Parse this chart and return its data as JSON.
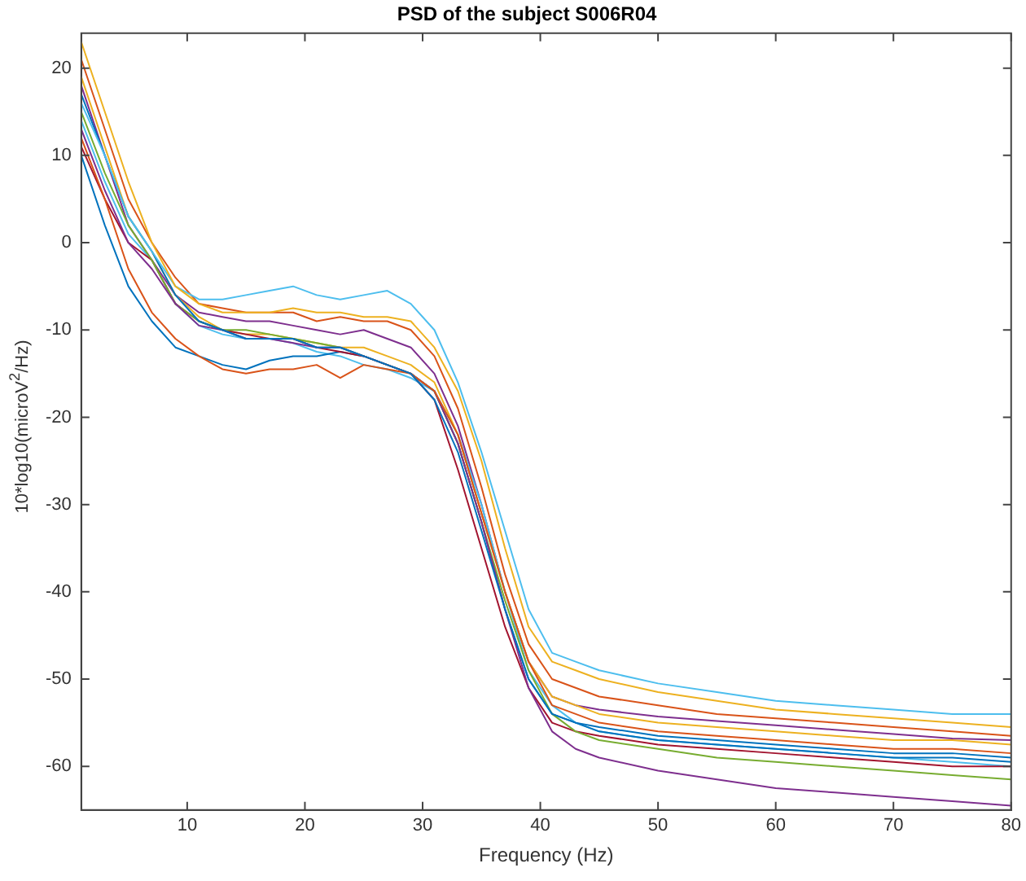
{
  "chart_data": {
    "type": "line",
    "title": "PSD of the subject S006R04",
    "xlabel": "Frequency (Hz)",
    "ylabel": "10*log10(microV$^{2}$/Hz)",
    "x": [
      1,
      3,
      5,
      7,
      9,
      11,
      13,
      15,
      17,
      19,
      21,
      23,
      25,
      27,
      29,
      31,
      33,
      35,
      37,
      39,
      41,
      43,
      45,
      50,
      55,
      60,
      65,
      70,
      75,
      80
    ],
    "xlim": [
      1,
      80
    ],
    "xticks": [
      10,
      20,
      30,
      40,
      50,
      60,
      70,
      80
    ],
    "ylim": [
      -65,
      24
    ],
    "yticks": [
      -60,
      -50,
      -40,
      -30,
      -20,
      -10,
      0,
      10,
      20
    ],
    "grid": false,
    "legend": false,
    "series": [
      {
        "color": "#edb120",
        "values": [
          23,
          15,
          7,
          0,
          -5,
          -7,
          -8,
          -8,
          -8,
          -7.5,
          -8,
          -8,
          -8.5,
          -8.5,
          -9,
          -12,
          -17,
          -25,
          -35,
          -44,
          -48,
          -49,
          -50,
          -51.5,
          -52.5,
          -53.5,
          -54,
          -54.5,
          -55,
          -55.5
        ]
      },
      {
        "color": "#4dbeee",
        "values": [
          16,
          10,
          3,
          -1,
          -5,
          -6.5,
          -6.5,
          -6,
          -5.5,
          -5,
          -6,
          -6.5,
          -6,
          -5.5,
          -7,
          -10,
          -16,
          -24,
          -33,
          -42,
          -47,
          -48,
          -49,
          -50.5,
          -51.5,
          -52.5,
          -53,
          -53.5,
          -54,
          -54
        ]
      },
      {
        "color": "#0072bd",
        "values": [
          17,
          10,
          3,
          -1,
          -6,
          -9,
          -10,
          -11,
          -11,
          -11,
          -12,
          -12,
          -13,
          -14,
          -15,
          -18,
          -24,
          -33,
          -42,
          -50,
          -54,
          -55,
          -55.5,
          -56.5,
          -57,
          -57.5,
          -58,
          -58.5,
          -58.5,
          -59
        ]
      },
      {
        "color": "#d95319",
        "values": [
          12,
          5,
          -3,
          -8,
          -11,
          -13,
          -14.5,
          -15,
          -14.5,
          -14.5,
          -14,
          -15.5,
          -14,
          -14.5,
          -15,
          -17,
          -22,
          -31,
          -40,
          -48,
          -53,
          -54,
          -55,
          -56,
          -56.5,
          -57,
          -57.5,
          -58,
          -58,
          -58.5
        ]
      },
      {
        "color": "#7e2f8e",
        "values": [
          13,
          6,
          0,
          -3,
          -7,
          -9.5,
          -10,
          -11,
          -11,
          -11.5,
          -12,
          -12,
          -13,
          -14,
          -15,
          -17,
          -23,
          -32,
          -42,
          -51,
          -56,
          -58,
          -59,
          -60.5,
          -61.5,
          -62.5,
          -63,
          -63.5,
          -64,
          -64.5
        ]
      },
      {
        "color": "#77ac30",
        "values": [
          15,
          8,
          2,
          -2,
          -7,
          -9,
          -10,
          -10,
          -10.5,
          -11,
          -11.5,
          -12,
          -13,
          -14,
          -15,
          -17,
          -23,
          -32,
          -41,
          -49,
          -54,
          -56,
          -57,
          -58,
          -59,
          -59.5,
          -60,
          -60.5,
          -61,
          -61.5
        ]
      },
      {
        "color": "#a2142f",
        "values": [
          11,
          5,
          0,
          -2,
          -7,
          -9,
          -10,
          -10.5,
          -11,
          -11,
          -12,
          -12.5,
          -13,
          -14,
          -15,
          -18,
          -26,
          -35,
          -44,
          -51,
          -55,
          -56,
          -56.5,
          -57.5,
          -58,
          -58.5,
          -59,
          -59.5,
          -60,
          -60
        ]
      },
      {
        "color": "#0072bd",
        "values": [
          10,
          2,
          -5,
          -9,
          -12,
          -13,
          -14,
          -14.5,
          -13.5,
          -13,
          -13,
          -12.5,
          -13,
          -14,
          -15,
          -17,
          -23,
          -32,
          -42,
          -50,
          -54,
          -55,
          -56,
          -57,
          -57.5,
          -58,
          -58.5,
          -59,
          -59,
          -59.5
        ]
      },
      {
        "color": "#d95319",
        "values": [
          21,
          13,
          5,
          0,
          -4,
          -7,
          -7.5,
          -8,
          -8,
          -8,
          -9,
          -8.5,
          -9,
          -9,
          -10,
          -13,
          -19,
          -28,
          -38,
          -46,
          -50,
          -51,
          -52,
          -53,
          -54,
          -54.5,
          -55,
          -55.5,
          -56,
          -56.5
        ]
      },
      {
        "color": "#edb120",
        "values": [
          19,
          11,
          3,
          -1,
          -6,
          -8.5,
          -10,
          -10.5,
          -10.5,
          -11,
          -11.5,
          -12,
          -12,
          -13,
          -14,
          -16,
          -22,
          -31,
          -40,
          -48,
          -52,
          -53,
          -54,
          -55,
          -55.5,
          -56,
          -56.5,
          -57,
          -57,
          -57.5
        ]
      },
      {
        "color": "#4dbeee",
        "values": [
          14,
          7,
          1,
          -2,
          -7,
          -9.5,
          -10.5,
          -11,
          -11,
          -11.5,
          -12.5,
          -13,
          -14,
          -14.5,
          -15.5,
          -17,
          -22,
          -30,
          -40,
          -49,
          -53,
          -55,
          -56,
          -57,
          -57.5,
          -58,
          -58.5,
          -59,
          -59.5,
          -60
        ]
      },
      {
        "color": "#7e2f8e",
        "values": [
          18,
          10,
          2,
          -2,
          -6,
          -8,
          -8.5,
          -9,
          -9,
          -9.5,
          -10,
          -10.5,
          -10,
          -11,
          -12,
          -15,
          -21,
          -30,
          -40,
          -48,
          -52,
          -53,
          -53.5,
          -54.3,
          -54.8,
          -55.3,
          -55.8,
          -56.3,
          -56.8,
          -57
        ]
      }
    ]
  }
}
